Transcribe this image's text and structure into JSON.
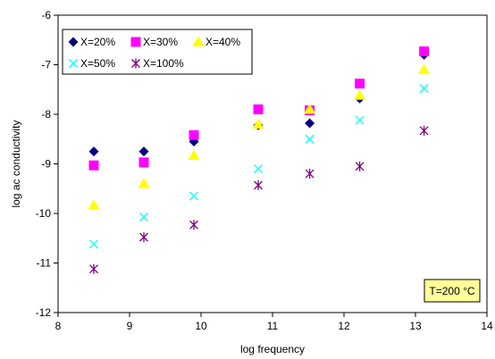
{
  "chart_data": {
    "type": "scatter",
    "xlabel": "log frequency",
    "ylabel": "log ac conductivity",
    "xlim": [
      8,
      14
    ],
    "ylim": [
      -12,
      -6
    ],
    "xticks": [
      "8",
      "9",
      "10",
      "11",
      "12",
      "13",
      "14"
    ],
    "yticks": [
      "-12",
      "-11",
      "-10",
      "-9",
      "-8",
      "-7",
      "-6"
    ],
    "grid": false,
    "legend_position": "top-left",
    "annotation": "T=200 °C",
    "annotation_color": "#ffff99",
    "series": [
      {
        "name": "X=20%",
        "marker": "diamond",
        "color": "#000080",
        "points": [
          [
            8.5,
            -8.75
          ],
          [
            9.2,
            -8.75
          ],
          [
            9.9,
            -8.55
          ],
          [
            10.8,
            -8.22
          ],
          [
            11.52,
            -8.18
          ],
          [
            12.22,
            -7.68
          ],
          [
            13.12,
            -6.8
          ]
        ]
      },
      {
        "name": "X=30%",
        "marker": "square",
        "color": "#ff00ff",
        "points": [
          [
            8.5,
            -9.03
          ],
          [
            9.2,
            -8.97
          ],
          [
            9.9,
            -8.42
          ],
          [
            10.8,
            -7.9
          ],
          [
            11.52,
            -7.92
          ],
          [
            12.22,
            -7.38
          ],
          [
            13.12,
            -6.73
          ]
        ]
      },
      {
        "name": "X=40%",
        "marker": "triangle",
        "color": "#ffff00",
        "points": [
          [
            8.5,
            -9.83
          ],
          [
            9.2,
            -9.4
          ],
          [
            9.9,
            -8.83
          ],
          [
            10.8,
            -8.2
          ],
          [
            11.52,
            -7.9
          ],
          [
            12.22,
            -7.62
          ],
          [
            13.12,
            -7.1
          ]
        ]
      },
      {
        "name": "X=50%",
        "marker": "x",
        "color": "#00ffff",
        "points": [
          [
            8.5,
            -10.62
          ],
          [
            9.2,
            -10.07
          ],
          [
            9.9,
            -9.65
          ],
          [
            10.8,
            -9.1
          ],
          [
            11.52,
            -8.5
          ],
          [
            12.22,
            -8.12
          ],
          [
            13.12,
            -7.48
          ]
        ]
      },
      {
        "name": "X=100%",
        "marker": "asterisk",
        "color": "#800080",
        "points": [
          [
            8.5,
            -11.12
          ],
          [
            9.2,
            -10.48
          ],
          [
            9.9,
            -10.23
          ],
          [
            10.8,
            -9.43
          ],
          [
            11.52,
            -9.2
          ],
          [
            12.22,
            -9.05
          ],
          [
            13.12,
            -8.33
          ]
        ]
      }
    ]
  }
}
